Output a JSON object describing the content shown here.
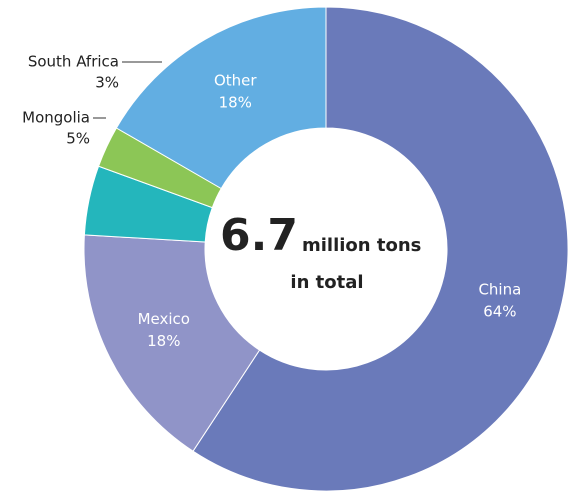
{
  "chart_data": {
    "type": "donut",
    "categories": [
      "China",
      "Mexico",
      "Mongolia",
      "South Africa",
      "Other"
    ],
    "values": [
      64,
      18,
      5,
      3,
      18
    ],
    "value_labels": [
      "64%",
      "18%",
      "5%",
      "3%",
      "18%"
    ],
    "colors": [
      "#6a7aba",
      "#9094c8",
      "#24b6bc",
      "#8cc656",
      "#62aee2"
    ],
    "center_value": 6.7,
    "center_unit": "million tons",
    "center_note": "in total"
  }
}
